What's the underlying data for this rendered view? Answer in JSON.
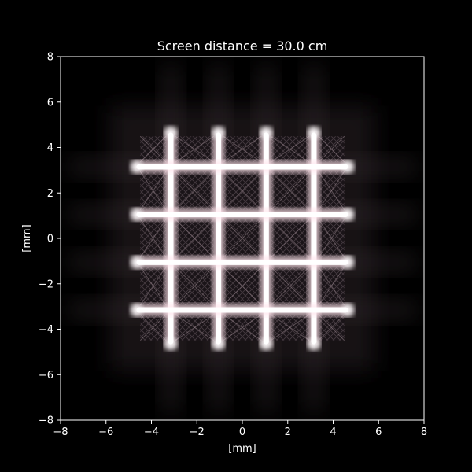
{
  "chart_data": {
    "type": "heatmap",
    "title": "Screen distance = 30.0 cm",
    "xlabel": "[mm]",
    "ylabel": "[mm]",
    "xlim": [
      -8,
      8
    ],
    "ylim": [
      -8,
      8
    ],
    "xticks": [
      -8,
      -6,
      -4,
      -2,
      0,
      2,
      4,
      6,
      8
    ],
    "yticks": [
      -8,
      -6,
      -4,
      -2,
      0,
      2,
      4,
      6,
      8
    ],
    "xtick_labels": [
      "−8",
      "−6",
      "−4",
      "−2",
      "0",
      "2",
      "4",
      "6",
      "8"
    ],
    "ytick_labels": [
      "−8",
      "−6",
      "−4",
      "−2",
      "0",
      "2",
      "4",
      "6",
      "8"
    ],
    "grid": false,
    "bright_lines_x": [
      -3.15,
      -1.05,
      1.05,
      3.15
    ],
    "bright_lines_y": [
      -3.15,
      -1.05,
      1.05,
      3.15
    ],
    "bright_region": {
      "x": [
        -4.8,
        4.8
      ],
      "y": [
        -4.8,
        4.8
      ]
    },
    "colors": {
      "background": "#000000",
      "line_glow": "#ffe4ec",
      "line_core": "#ffffff",
      "cell_dark": "#1a1418",
      "axes": "#ffffff"
    }
  }
}
